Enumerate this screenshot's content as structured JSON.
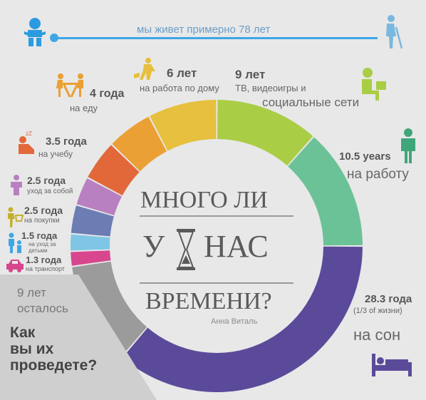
{
  "header": {
    "lifespan_text": "мы живет примерно 78 лет"
  },
  "center": {
    "line1": "МНОГО ЛИ",
    "line2_left": "У",
    "line2_right": "НАС",
    "line3": "ВРЕМЕНИ?",
    "author": "Анна Виталь"
  },
  "left_note": {
    "amount": "9 лет",
    "remaining": "осталось",
    "q1": "Как",
    "q2": "вы их",
    "q3": "проведете?"
  },
  "labels": {
    "sleep": {
      "amount": "28.3 года",
      "note": "(1/3 of жизни)",
      "activity": "на сон"
    },
    "work": {
      "amount": "10.5 years",
      "activity": "на работу"
    },
    "tv": {
      "amount": "9 лет",
      "activity_a": "ТВ, видеоигры и",
      "activity_b": "социальные сети"
    },
    "house": {
      "amount": "6 лет",
      "activity": "на работа по дому"
    },
    "food": {
      "amount": "4 года",
      "activity": "на еду"
    },
    "study": {
      "amount": "3.5 года",
      "activity": "на учебу"
    },
    "care": {
      "amount": "2.5 года",
      "activity": "уход за собой"
    },
    "shop": {
      "amount": "2.5 года",
      "activity": "на покупки"
    },
    "kids": {
      "amount": "1.5 года",
      "activity_a": "на уход за",
      "activity_b": "детьми"
    },
    "transport": {
      "amount": "1.3 года",
      "activity": "на транспорт"
    }
  },
  "chart_data": {
    "type": "pie",
    "donut": true,
    "slices": [
      {
        "key": "sleep",
        "value": 28.3,
        "color": "#5b4a9a"
      },
      {
        "key": "remaining",
        "value": 9,
        "color": "#9b9b9b"
      },
      {
        "key": "transport",
        "value": 1.3,
        "color": "#d8468e"
      },
      {
        "key": "kids",
        "value": 1.5,
        "color": "#7fc6e6"
      },
      {
        "key": "shop",
        "value": 2.5,
        "color": "#6b7db3"
      },
      {
        "key": "care",
        "value": 2.5,
        "color": "#b880c0"
      },
      {
        "key": "study",
        "value": 3.5,
        "color": "#e2683a"
      },
      {
        "key": "food",
        "value": 4,
        "color": "#eaa034"
      },
      {
        "key": "house",
        "value": 6,
        "color": "#e6c03e"
      },
      {
        "key": "tv",
        "value": 9,
        "color": "#a9cd45"
      },
      {
        "key": "work",
        "value": 10.5,
        "color": "#6cc297"
      }
    ]
  }
}
